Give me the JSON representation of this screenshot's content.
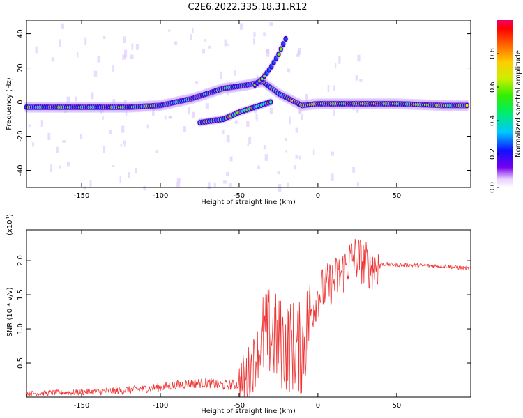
{
  "title": "C2E6.2022.335.18.31.R12",
  "chart_data": [
    {
      "type": "heatmap",
      "xlabel": "Height of straight line (km)",
      "ylabel": "Frequency (Hz)",
      "xlim": [
        -185,
        97
      ],
      "ylim": [
        -50,
        48
      ],
      "xticks": [
        -150,
        -100,
        -50,
        0,
        50
      ],
      "yticks": [
        -40,
        -20,
        0,
        20,
        40
      ],
      "xtick_labels": [
        "-150",
        "-100",
        "-50",
        "0",
        "50"
      ],
      "ytick_labels": [
        "-40",
        "-20",
        "0",
        "20",
        "40"
      ],
      "features": [
        {
          "name": "main band",
          "x": [
            -185,
            -150,
            -120,
            -100,
            -90,
            -80,
            -70,
            -60,
            -45,
            -35,
            -25,
            -10,
            0,
            20,
            50,
            80,
            95
          ],
          "freq": [
            -3,
            -3,
            -3,
            -2,
            0,
            2,
            5,
            8,
            10,
            12,
            5,
            -2,
            -1,
            -1,
            -1,
            -2,
            -2
          ]
        },
        {
          "name": "descending branch",
          "x": [
            -75,
            -60,
            -50,
            -40,
            -30
          ],
          "freq": [
            -12,
            -10,
            -6,
            -3,
            0
          ]
        },
        {
          "name": "rising branch",
          "x": [
            -40,
            -35,
            -30,
            -25,
            -20
          ],
          "freq": [
            10,
            14,
            20,
            28,
            38
          ]
        }
      ]
    },
    {
      "type": "colorbar",
      "label": "Normalized spectral amplitude",
      "range": [
        0.0,
        1.0
      ],
      "ticks": [
        0.0,
        0.2,
        0.4,
        0.6,
        0.8
      ],
      "tick_labels": [
        "0.0",
        "0.2",
        "0.4",
        "0.6",
        "0.8"
      ]
    },
    {
      "type": "line",
      "xlabel": "Height of straight line (km)",
      "ylabel": "SNR (10 * v/v)",
      "scale_label": "(x10",
      "scale_exp": "4",
      "scale_close": ")",
      "xlim": [
        -185,
        97
      ],
      "ylim": [
        0,
        2.45
      ],
      "xticks": [
        -150,
        -100,
        -50,
        0,
        50
      ],
      "yticks": [
        0.5,
        1.0,
        1.5,
        2.0
      ],
      "xtick_labels": [
        "-150",
        "-100",
        "-50",
        "0",
        "50"
      ],
      "ytick_labels": [
        "0.5",
        "1.0",
        "1.5",
        "2.0"
      ],
      "series": [
        {
          "name": "SNR",
          "color": "#ee3333",
          "x": [
            -185,
            -160,
            -140,
            -120,
            -100,
            -90,
            -80,
            -70,
            -60,
            -50,
            -45,
            -40,
            -35,
            -30,
            -25,
            -20,
            -15,
            -10,
            -5,
            0,
            5,
            10,
            15,
            20,
            25,
            30,
            35,
            40,
            60,
            80,
            97
          ],
          "y": [
            0.04,
            0.05,
            0.06,
            0.08,
            0.12,
            0.15,
            0.17,
            0.18,
            0.14,
            0.15,
            0.3,
            0.55,
            0.85,
            0.95,
            0.8,
            0.75,
            0.75,
            0.7,
            1.2,
            1.5,
            1.6,
            1.7,
            1.8,
            2.0,
            2.05,
            1.95,
            1.9,
            1.95,
            1.93,
            1.92,
            1.88
          ]
        }
      ]
    }
  ],
  "colors": {
    "line": "#ee3333",
    "axis": "#000000"
  }
}
